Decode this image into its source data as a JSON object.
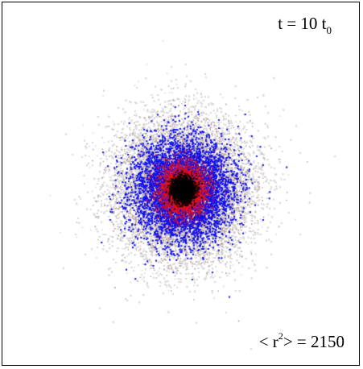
{
  "time_label": {
    "text": "t = 10 t",
    "subscript": "0"
  },
  "msd_label": {
    "prefix": "< r",
    "superscript": "2",
    "suffix": "> = 2150"
  },
  "colors": {
    "background": "#ffffff",
    "border": "#000000",
    "outer_cloud": "#d8d8d8",
    "tan_ring": "#b59a94",
    "blue_ring": "#1010ee",
    "red_ring": "#ee1010",
    "core": "#000000"
  }
}
